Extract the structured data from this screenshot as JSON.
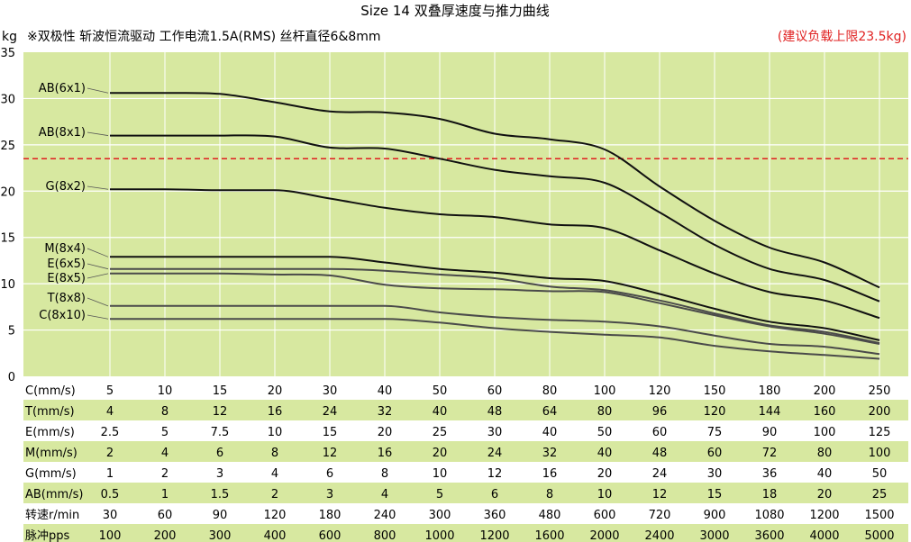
{
  "header": {
    "title": "Size 14 双叠厚速度与推力曲线",
    "yunit": "kg",
    "note": "※双极性 斩波恒流驱动 工作电流1.5A(RMS) 丝杆直径6&8mm",
    "warning": "(建议负载上限23.5kg)"
  },
  "colors": {
    "plot_bg": "#d7e8a0",
    "table_band": "#d7e8a0",
    "limit_line": "#e02020",
    "curve_dark": "#111111",
    "curve_gray": "#4a4a4a"
  },
  "chart_data": {
    "type": "line",
    "title": "Size 14 双叠厚速度与推力曲线",
    "ylabel": "kg",
    "ylim": [
      0,
      35
    ],
    "yticks": [
      "0",
      "5",
      "10",
      "15",
      "20",
      "25",
      "30",
      "35"
    ],
    "grid": true,
    "limit_line": {
      "value": 23.5,
      "label": "(建议负载上限23.5kg)"
    },
    "x_index": [
      0,
      1,
      2,
      3,
      4,
      5,
      6,
      7,
      8,
      9,
      10,
      11,
      12,
      13,
      14
    ],
    "series": [
      {
        "name": "AB(6x1)",
        "color": "dark",
        "values": [
          30.6,
          30.6,
          30.5,
          29.6,
          28.6,
          28.5,
          27.8,
          26.2,
          25.6,
          24.5,
          20.5,
          16.8,
          13.9,
          12.3,
          9.6
        ]
      },
      {
        "name": "AB(8x1)",
        "color": "dark",
        "values": [
          26.0,
          26.0,
          26.0,
          25.9,
          24.7,
          24.6,
          23.5,
          22.3,
          21.6,
          20.9,
          17.7,
          14.2,
          11.6,
          10.4,
          8.1
        ]
      },
      {
        "name": "G(8x2)",
        "color": "dark",
        "values": [
          20.2,
          20.2,
          20.1,
          20.1,
          19.2,
          18.2,
          17.5,
          17.2,
          16.4,
          16.0,
          13.6,
          11.1,
          9.1,
          8.2,
          6.3
        ]
      },
      {
        "name": "M(8x4)",
        "color": "dark",
        "values": [
          12.9,
          12.9,
          12.9,
          12.9,
          12.9,
          12.3,
          11.6,
          11.2,
          10.6,
          10.3,
          8.9,
          7.3,
          5.9,
          5.2,
          3.9
        ]
      },
      {
        "name": "E(6x5)",
        "color": "gray",
        "values": [
          11.6,
          11.6,
          11.6,
          11.6,
          11.6,
          11.4,
          11.0,
          10.6,
          9.7,
          9.3,
          8.2,
          6.8,
          5.5,
          4.8,
          3.6
        ]
      },
      {
        "name": "E(8x5)",
        "color": "gray",
        "values": [
          11.1,
          11.1,
          11.1,
          11.0,
          10.9,
          9.9,
          9.5,
          9.4,
          9.2,
          9.1,
          7.9,
          6.6,
          5.4,
          4.6,
          3.5
        ]
      },
      {
        "name": "T(8x8)",
        "color": "gray",
        "values": [
          7.6,
          7.6,
          7.6,
          7.6,
          7.6,
          7.6,
          6.9,
          6.4,
          6.1,
          5.9,
          5.4,
          4.4,
          3.5,
          3.2,
          2.4
        ]
      },
      {
        "name": "C(8x10)",
        "color": "gray",
        "values": [
          6.2,
          6.2,
          6.2,
          6.2,
          6.2,
          6.2,
          5.8,
          5.2,
          4.8,
          4.5,
          4.2,
          3.3,
          2.7,
          2.3,
          1.9
        ]
      }
    ]
  },
  "table": {
    "rows": [
      {
        "label": "C(mm/s)",
        "values": [
          "5",
          "10",
          "15",
          "20",
          "30",
          "40",
          "50",
          "60",
          "80",
          "100",
          "120",
          "150",
          "180",
          "200",
          "250"
        ]
      },
      {
        "label": "T(mm/s)",
        "values": [
          "4",
          "8",
          "12",
          "16",
          "24",
          "32",
          "40",
          "48",
          "64",
          "80",
          "96",
          "120",
          "144",
          "160",
          "200"
        ]
      },
      {
        "label": "E(mm/s)",
        "values": [
          "2.5",
          "5",
          "7.5",
          "10",
          "15",
          "20",
          "25",
          "30",
          "40",
          "50",
          "60",
          "75",
          "90",
          "100",
          "125"
        ]
      },
      {
        "label": "M(mm/s)",
        "values": [
          "2",
          "4",
          "6",
          "8",
          "12",
          "16",
          "20",
          "24",
          "32",
          "40",
          "48",
          "60",
          "72",
          "80",
          "100"
        ]
      },
      {
        "label": "G(mm/s)",
        "values": [
          "1",
          "2",
          "3",
          "4",
          "6",
          "8",
          "10",
          "12",
          "16",
          "20",
          "24",
          "30",
          "36",
          "40",
          "50"
        ]
      },
      {
        "label": "AB(mm/s)",
        "values": [
          "0.5",
          "1",
          "1.5",
          "2",
          "3",
          "4",
          "5",
          "6",
          "8",
          "10",
          "12",
          "15",
          "18",
          "20",
          "25"
        ]
      },
      {
        "label": "转速r/min",
        "values": [
          "30",
          "60",
          "90",
          "120",
          "180",
          "240",
          "300",
          "360",
          "480",
          "600",
          "720",
          "900",
          "1080",
          "1200",
          "1500"
        ]
      },
      {
        "label": "脉冲pps",
        "values": [
          "100",
          "200",
          "300",
          "400",
          "600",
          "800",
          "1000",
          "1200",
          "1600",
          "2000",
          "2400",
          "3000",
          "3600",
          "4000",
          "5000"
        ]
      }
    ]
  }
}
